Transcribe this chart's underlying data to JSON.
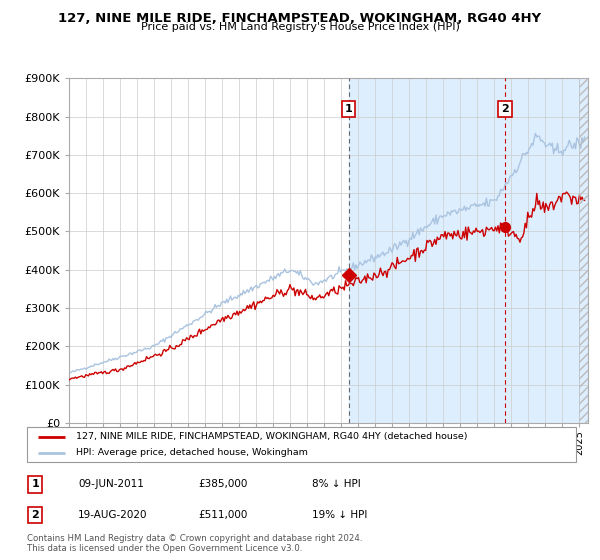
{
  "title": "127, NINE MILE RIDE, FINCHAMPSTEAD, WOKINGHAM, RG40 4HY",
  "subtitle": "Price paid vs. HM Land Registry's House Price Index (HPI)",
  "ylim": [
    0,
    900000
  ],
  "yticks": [
    0,
    100000,
    200000,
    300000,
    400000,
    500000,
    600000,
    700000,
    800000,
    900000
  ],
  "ytick_labels": [
    "£0",
    "£100K",
    "£200K",
    "£300K",
    "£400K",
    "£500K",
    "£600K",
    "£700K",
    "£800K",
    "£900K"
  ],
  "xlim_start": 1995.0,
  "xlim_end": 2025.5,
  "hpi_color": "#aac4e0",
  "price_color": "#cc0000",
  "shaded_region_color": "#ddeeff",
  "grid_color": "#cccccc",
  "event1_x": 2011.44,
  "event1_y": 385000,
  "event1_date": "09-JUN-2011",
  "event1_price": "£385,000",
  "event1_note": "8% ↓ HPI",
  "event2_x": 2020.63,
  "event2_y": 511000,
  "event2_date": "19-AUG-2020",
  "event2_price": "£511,000",
  "event2_note": "19% ↓ HPI",
  "legend_label1": "127, NINE MILE RIDE, FINCHAMPSTEAD, WOKINGHAM, RG40 4HY (detached house)",
  "legend_label2": "HPI: Average price, detached house, Wokingham",
  "footer1": "Contains HM Land Registry data © Crown copyright and database right 2024.",
  "footer2": "This data is licensed under the Open Government Licence v3.0."
}
